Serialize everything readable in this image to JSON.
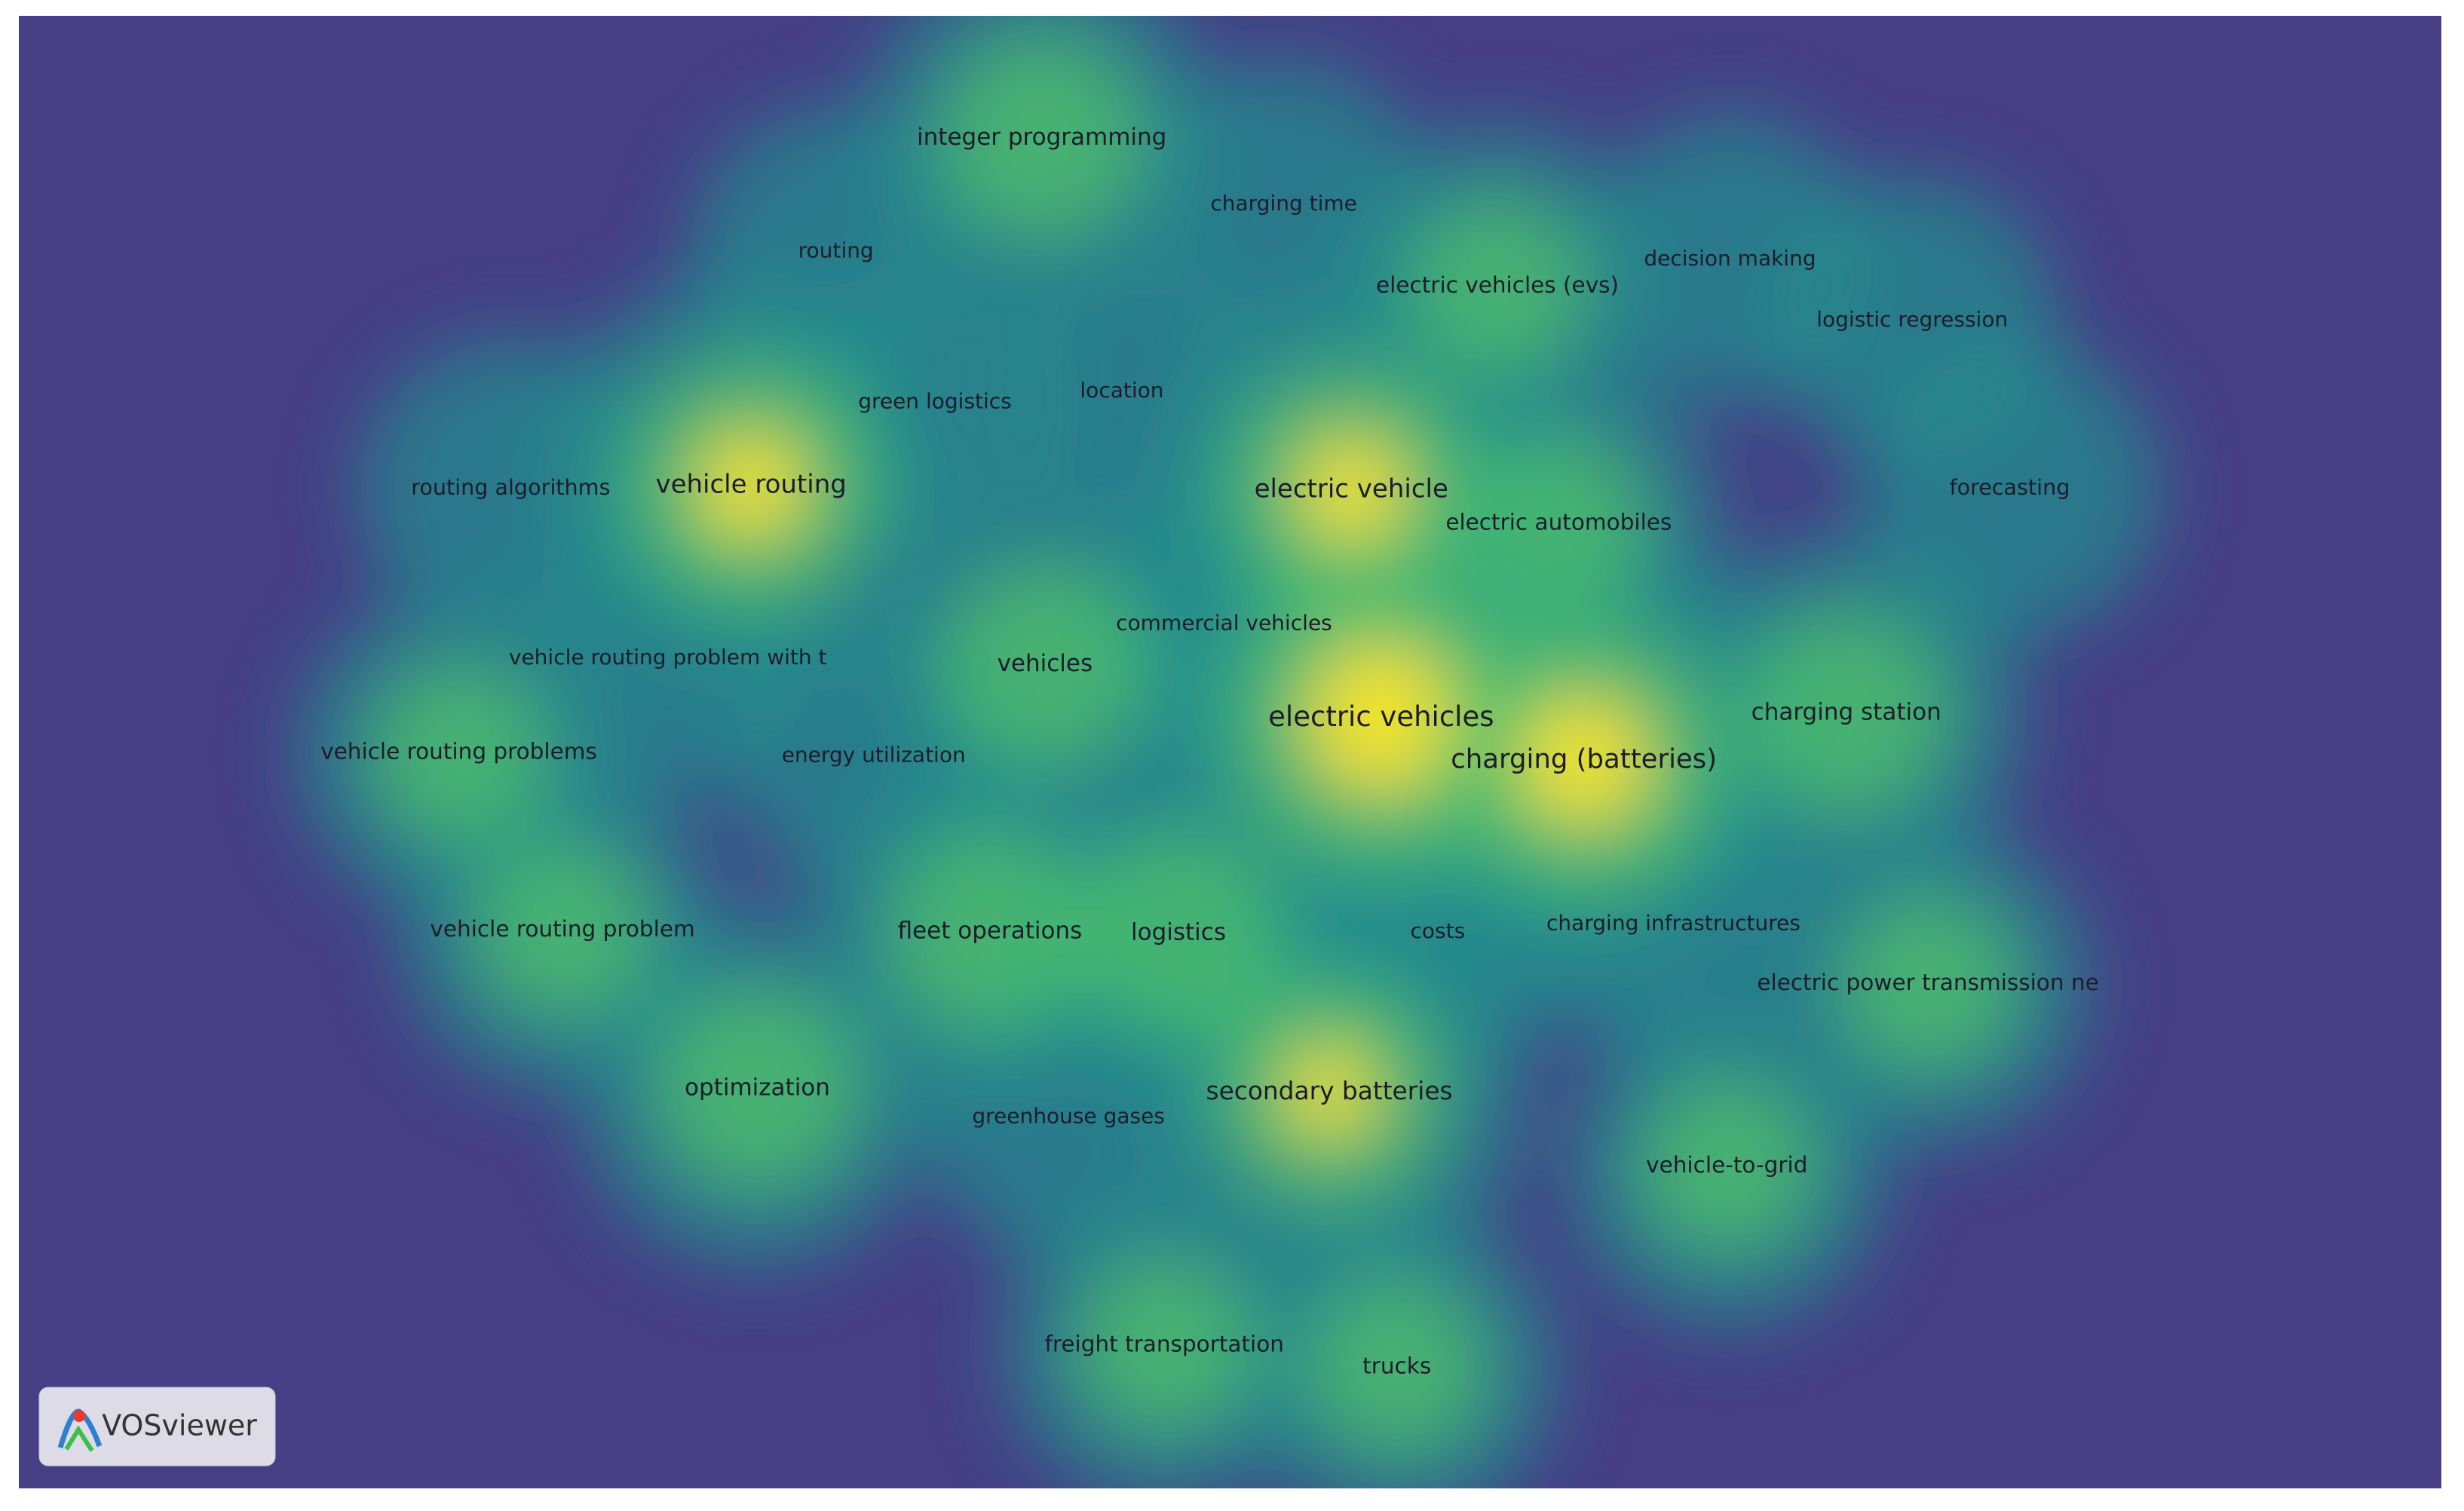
{
  "nodes": [
    {
      "label": "integer programming"
    },
    {
      "label": "charging time"
    },
    {
      "label": "routing"
    },
    {
      "label": "electric vehicles (evs)"
    },
    {
      "label": "decision making"
    },
    {
      "label": "logistic regression"
    },
    {
      "label": "green logistics"
    },
    {
      "label": "location"
    },
    {
      "label": "vehicle routing"
    },
    {
      "label": "routing algorithms"
    },
    {
      "label": "electric vehicle"
    },
    {
      "label": "electric automobiles"
    },
    {
      "label": "forecasting"
    },
    {
      "label": "commercial vehicles"
    },
    {
      "label": "vehicle routing problem with t"
    },
    {
      "label": "vehicles"
    },
    {
      "label": "electric vehicles"
    },
    {
      "label": "charging station"
    },
    {
      "label": "charging (batteries)"
    },
    {
      "label": "vehicle routing problems"
    },
    {
      "label": "energy utilization"
    },
    {
      "label": "vehicle routing problem"
    },
    {
      "label": "fleet operations"
    },
    {
      "label": "logistics"
    },
    {
      "label": "costs"
    },
    {
      "label": "charging infrastructures"
    },
    {
      "label": "electric power transmission ne"
    },
    {
      "label": "optimization"
    },
    {
      "label": "greenhouse gases"
    },
    {
      "label": "secondary batteries"
    },
    {
      "label": "vehicle-to-grid"
    },
    {
      "label": "freight transportation"
    },
    {
      "label": "trucks"
    }
  ],
  "logo": {
    "text": "VOSviewer"
  }
}
